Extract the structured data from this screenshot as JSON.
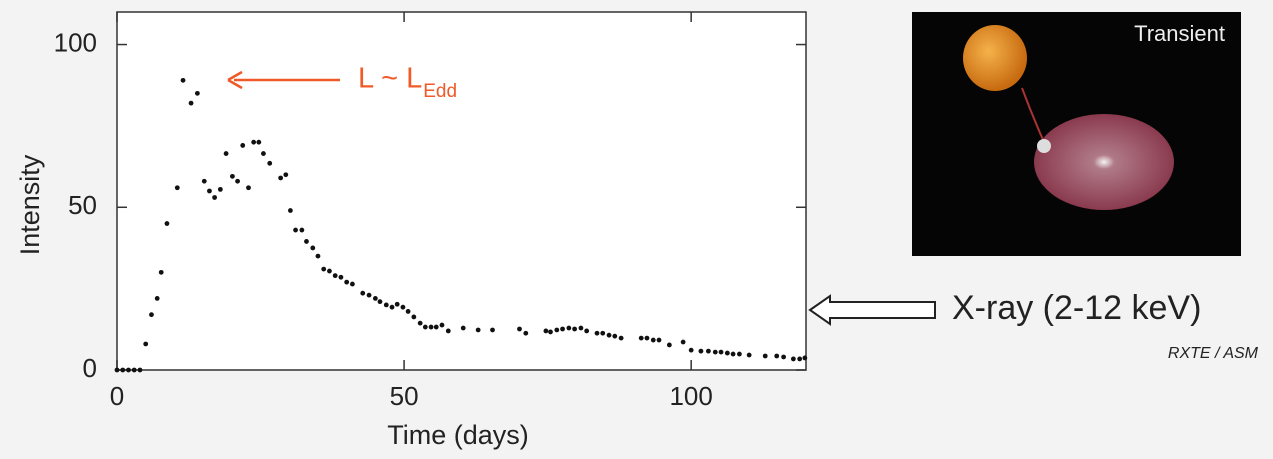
{
  "chart_data": {
    "type": "scatter",
    "x_label": "Time (days)",
    "y_label": "Intensity",
    "x": [
      0,
      1,
      2,
      3,
      4,
      5,
      6,
      7,
      7.7,
      8.7,
      10.5,
      11.5,
      12.9,
      14,
      15.2,
      16.1,
      17,
      18,
      19,
      20.1,
      21,
      21.9,
      22.9,
      23.8,
      24.7,
      25.5,
      26.6,
      28.5,
      29.4,
      30.2,
      31.1,
      32.2,
      33,
      34.1,
      35,
      36,
      37,
      38,
      39,
      40,
      41,
      42.8,
      43.9,
      45,
      45.8,
      46.9,
      47.9,
      48.8,
      49.8,
      50.7,
      51.7,
      52.8,
      53.7,
      54.7,
      55.6,
      56.6,
      57.7,
      60.3,
      62.9,
      65.4,
      70.1,
      71.2,
      74.7,
      75.5,
      76.6,
      77.6,
      78.7,
      79.7,
      80.8,
      81.8,
      83.6,
      84.6,
      85.7,
      86.7,
      87.8,
      91.3,
      92.3,
      93.4,
      94.4,
      96.2,
      98.6,
      100,
      101.7,
      103,
      104.2,
      105.2,
      106.3,
      107.3,
      108.4,
      110.1,
      112.9,
      114.9,
      116.1,
      117.8,
      118.9,
      119.8
    ],
    "values": [
      0,
      0,
      0,
      0,
      0,
      8,
      17,
      22,
      30,
      45,
      56,
      89,
      82,
      85,
      58,
      55,
      53,
      55.5,
      66.5,
      59.5,
      58,
      69,
      56,
      70,
      70,
      66.5,
      63.5,
      59,
      60,
      49,
      43,
      43,
      39.5,
      37.5,
      35,
      31,
      30.4,
      29,
      28.5,
      27,
      26.4,
      23.6,
      23,
      22,
      21,
      20,
      19.3,
      20.2,
      19.3,
      18,
      16.3,
      14.4,
      13.2,
      13.2,
      13.2,
      13.8,
      12,
      12.9,
      12.3,
      12.3,
      12.6,
      11.3,
      12,
      11.7,
      12.3,
      12.6,
      12.9,
      12.6,
      12.9,
      12,
      11.3,
      11.3,
      10.7,
      10.4,
      9.8,
      9.8,
      9.8,
      9.2,
      9.2,
      7.7,
      8.6,
      6.1,
      5.8,
      5.8,
      5.5,
      5.5,
      5.2,
      4.9,
      4.9,
      4.6,
      4.3,
      4.3,
      4,
      3.4,
      3.4,
      3.7
    ],
    "color": "#111111",
    "xlim": [
      0,
      120
    ],
    "ylim": [
      0,
      110
    ],
    "xticks": [
      0,
      50,
      100
    ],
    "yticks": [
      0,
      50,
      100
    ],
    "annotations": [
      {
        "text": "L ~ L",
        "subscript": "Edd",
        "color": "#f05a28"
      }
    ]
  },
  "inset": {
    "title": "Transient"
  },
  "side_label": {
    "text": "X-ray (2-12 keV)",
    "source": "RXTE / ASM"
  }
}
